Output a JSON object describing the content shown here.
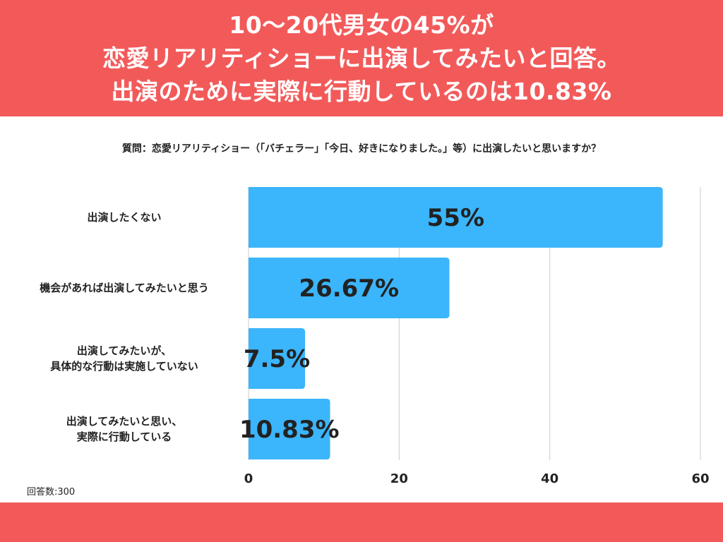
{
  "header": {
    "line1": "10〜20代男女の45%が",
    "line2": "恋愛リアリティショーに出演してみたいと回答。",
    "line3": "出演のために実際に行動しているのは10.83%"
  },
  "question": "質問：恋愛リアリティショー（「バチェラー」「今日、好きになりました。」等）に出演したいと思いますか？",
  "respondents": "回答数:300",
  "colors": {
    "bar": "#3bb5fb",
    "header_bg": "#f25a5a",
    "grid": "#cccccc"
  },
  "chart_data": {
    "type": "bar",
    "orientation": "horizontal",
    "categories": [
      [
        "出演したくない"
      ],
      [
        "機会があれば出演してみたいと思う"
      ],
      [
        "出演してみたいが、",
        "具体的な行動は実施していない"
      ],
      [
        "出演してみたいと思い、",
        "実際に行動している"
      ]
    ],
    "values": [
      55,
      26.67,
      7.5,
      10.83
    ],
    "value_labels": [
      "55%",
      "26.67%",
      "7.5%",
      "10.83%"
    ],
    "xlim": [
      0,
      60
    ],
    "xticks": [
      0,
      20,
      40,
      60
    ],
    "grid": true
  }
}
